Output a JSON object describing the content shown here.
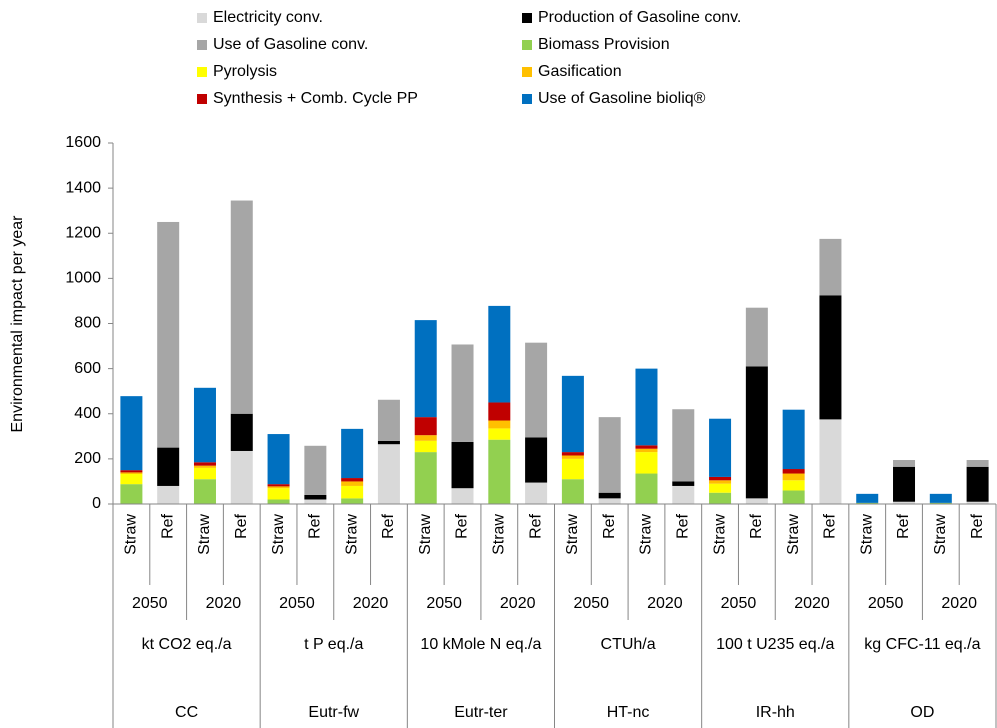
{
  "chart_data": {
    "type": "stacked_bar",
    "y_label": "Environmental impact per year",
    "categories": [
      "Straw",
      "Ref",
      "Straw",
      "Ref",
      "Straw",
      "Ref",
      "Straw",
      "Ref",
      "Straw",
      "Ref",
      "Straw",
      "Ref",
      "Straw",
      "Ref",
      "Straw",
      "Ref",
      "Straw",
      "Ref",
      "Straw",
      "Ref",
      "Straw",
      "Ref",
      "Straw",
      "Ref"
    ],
    "years": [
      "2050",
      "2020",
      "2050",
      "2020",
      "2050",
      "2020",
      "2050",
      "2020",
      "2050",
      "2020",
      "2050",
      "2020"
    ],
    "units": [
      "kt CO2 eq./a",
      "t P eq./a",
      "10 kMole N eq./a",
      "CTUh/a",
      "100 t U235 eq./a",
      "kg CFC-11 eq./a"
    ],
    "impacts": [
      "CC",
      "Eutr-fw",
      "Eutr-ter",
      "HT-nc",
      "IR-hh",
      "OD"
    ],
    "series": [
      {
        "name": "Electricity conv.",
        "color": "#d9d9d9",
        "values": [
          0,
          80,
          0,
          235,
          0,
          20,
          0,
          265,
          0,
          70,
          0,
          95,
          0,
          25,
          0,
          80,
          0,
          25,
          0,
          375,
          0,
          10,
          0,
          10
        ]
      },
      {
        "name": "Biomass Provision",
        "color": "#92d050",
        "values": [
          88,
          0,
          110,
          0,
          20,
          0,
          25,
          0,
          230,
          0,
          285,
          0,
          110,
          0,
          135,
          0,
          50,
          0,
          60,
          0,
          5,
          0,
          5,
          0
        ]
      },
      {
        "name": "Pyrolysis",
        "color": "#ffff00",
        "values": [
          45,
          0,
          50,
          0,
          50,
          0,
          55,
          0,
          50,
          0,
          50,
          0,
          90,
          0,
          95,
          0,
          40,
          0,
          45,
          0,
          0,
          0,
          0,
          0
        ]
      },
      {
        "name": "Gasification",
        "color": "#ffc000",
        "values": [
          7,
          0,
          10,
          0,
          8,
          0,
          20,
          0,
          25,
          0,
          35,
          0,
          15,
          0,
          15,
          0,
          15,
          0,
          30,
          0,
          0,
          0,
          0,
          0
        ]
      },
      {
        "name": "Synthesis + Comb. Cycle PP",
        "color": "#c00000",
        "values": [
          10,
          0,
          15,
          0,
          10,
          0,
          15,
          0,
          80,
          0,
          80,
          0,
          15,
          0,
          15,
          0,
          15,
          0,
          20,
          0,
          0,
          0,
          0,
          0
        ]
      },
      {
        "name": "Use of Gasoline bioliq®",
        "color": "#0070c0",
        "values": [
          328,
          0,
          330,
          0,
          222,
          0,
          218,
          0,
          430,
          0,
          428,
          0,
          338,
          0,
          340,
          0,
          258,
          0,
          263,
          0,
          40,
          0,
          40,
          0
        ]
      },
      {
        "name": "Production of Gasoline conv.",
        "color": "#000000",
        "values": [
          0,
          170,
          0,
          165,
          0,
          20,
          0,
          15,
          0,
          205,
          0,
          200,
          0,
          25,
          0,
          20,
          0,
          585,
          0,
          550,
          0,
          155,
          0,
          155
        ]
      },
      {
        "name": "Use of Gasoline conv.",
        "color": "#a6a6a6",
        "values": [
          0,
          1000,
          0,
          945,
          0,
          218,
          0,
          182,
          0,
          432,
          0,
          420,
          0,
          335,
          0,
          320,
          0,
          260,
          0,
          250,
          0,
          30,
          0,
          30
        ]
      }
    ],
    "ylim": [
      0,
      1600
    ],
    "yticks": [
      0,
      200,
      400,
      600,
      800,
      1000,
      1200,
      1400,
      1600
    ],
    "grid": false
  }
}
